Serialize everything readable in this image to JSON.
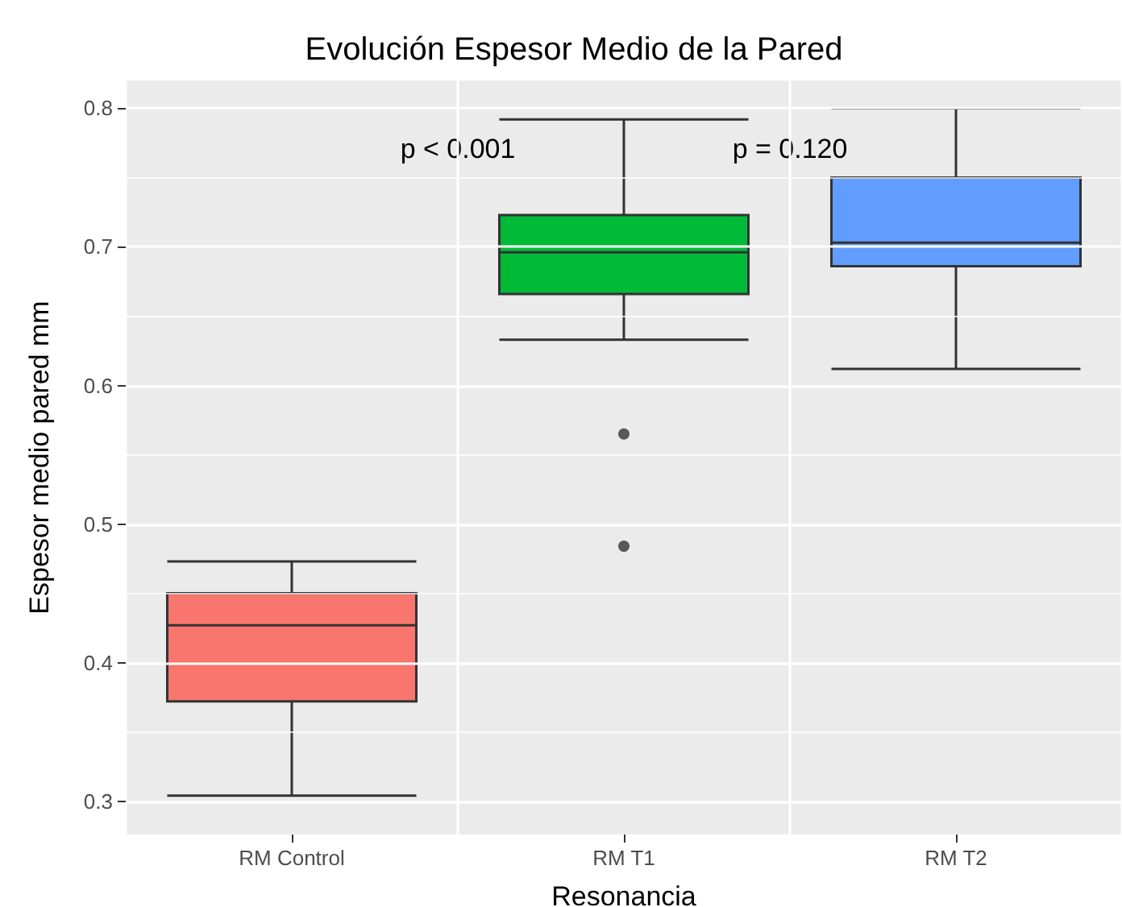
{
  "chart_data": {
    "type": "box",
    "title": "Evolución Espesor Medio de la Pared",
    "xlabel": "Resonancia",
    "ylabel": "Espesor medio pared mm",
    "categories": [
      "RM Control",
      "RM T1",
      "RM T2"
    ],
    "colors": [
      "#f8766d",
      "#00ba38",
      "#619cff"
    ],
    "boxes": [
      {
        "low": 0.304,
        "q1": 0.372,
        "median": 0.427,
        "q3": 0.45,
        "high": 0.473
      },
      {
        "low": 0.633,
        "q1": 0.666,
        "median": 0.696,
        "q3": 0.723,
        "high": 0.792,
        "outliers": [
          0.565,
          0.484
        ]
      },
      {
        "low": 0.612,
        "q1": 0.686,
        "median": 0.703,
        "q3": 0.75,
        "high": 0.8
      }
    ],
    "ylim": [
      0.276,
      0.82
    ],
    "yticks": [
      0.3,
      0.4,
      0.5,
      0.6,
      0.7,
      0.8
    ],
    "grid": true,
    "annotations": [
      "p < 0.001",
      "p = 0.120"
    ]
  }
}
